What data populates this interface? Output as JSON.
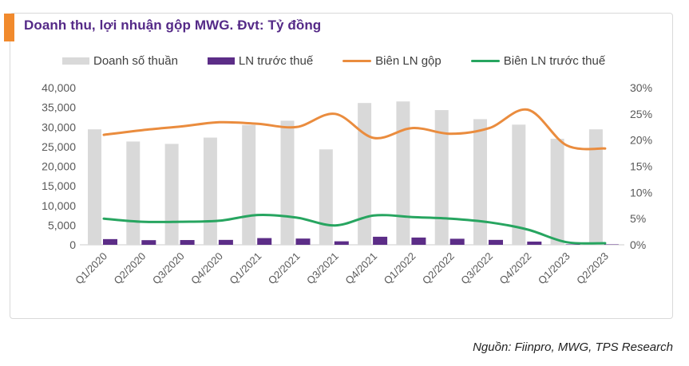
{
  "card": {
    "title": "Doanh thu, lợi nhuận gộp MWG. Đvt: Tỷ đồng"
  },
  "legend": [
    {
      "label": "Doanh số thuần",
      "swatch": "bar",
      "color": "#d9d9d9"
    },
    {
      "label": "LN trước thuế",
      "swatch": "bar",
      "color": "#5c2d87"
    },
    {
      "label": "Biên LN gộp",
      "swatch": "line",
      "color": "#ea8c3e"
    },
    {
      "label": "Biên LN trước thuế",
      "swatch": "line",
      "color": "#27a560"
    }
  ],
  "source": "Nguồn: Fiinpro, MWG, TPS Research",
  "colors": {
    "accent_orange": "#f18a2d",
    "title_purple": "#542987",
    "bar_gray": "#d9d9d9",
    "bar_purple": "#5c2d87",
    "line_orange": "#ea8c3e",
    "line_green": "#27a560",
    "axis_text": "#595959",
    "axis_line": "#d6d6d6"
  },
  "chart_data": {
    "type": "bar",
    "subtype": "combo-bar-line",
    "title": "Doanh thu, lợi nhuận gộp MWG. Đvt: Tỷ đồng",
    "categories": [
      "Q1/2020",
      "Q2/2020",
      "Q3/2020",
      "Q4/2020",
      "Q1/2021",
      "Q2/2021",
      "Q3/2021",
      "Q4/2021",
      "Q1/2022",
      "Q2/2022",
      "Q3/2022",
      "Q4/2022",
      "Q1/2023",
      "Q2/2023"
    ],
    "series": [
      {
        "name": "Doanh số thuần",
        "type": "bar",
        "axis": "left",
        "color": "#d9d9d9",
        "values": [
          29400,
          26300,
          25700,
          27300,
          30500,
          31600,
          24300,
          36100,
          36500,
          34300,
          32000,
          30600,
          27000,
          29400
        ]
      },
      {
        "name": "LN trước thuế",
        "type": "bar",
        "axis": "left",
        "color": "#5c2d87",
        "values": [
          1450,
          1180,
          1210,
          1250,
          1710,
          1590,
          890,
          2050,
          1850,
          1540,
          1250,
          820,
          30,
          40
        ]
      },
      {
        "name": "Biên LN gộp",
        "type": "line",
        "axis": "right",
        "color": "#ea8c3e",
        "values": [
          21.0,
          21.9,
          22.6,
          23.4,
          23.1,
          22.5,
          25.0,
          20.4,
          22.3,
          21.2,
          22.3,
          25.8,
          19.0,
          18.4
        ]
      },
      {
        "name": "Biên LN trước thuế",
        "type": "line",
        "axis": "right",
        "color": "#27a560",
        "values": [
          5.0,
          4.4,
          4.4,
          4.6,
          5.7,
          5.2,
          3.7,
          5.6,
          5.3,
          5.0,
          4.3,
          2.9,
          0.5,
          0.3
        ]
      }
    ],
    "left_axis": {
      "min": 0,
      "max": 40000,
      "step": 5000,
      "tick_labels": [
        "0",
        "5,000",
        "10,000",
        "15,000",
        "20,000",
        "25,000",
        "30,000",
        "35,000",
        "40,000"
      ]
    },
    "right_axis": {
      "min": 0,
      "max": 30,
      "step": 5,
      "tick_labels": [
        "0%",
        "5%",
        "10%",
        "15%",
        "20%",
        "25%",
        "30%"
      ]
    },
    "legend_position": "top",
    "grid": false
  }
}
